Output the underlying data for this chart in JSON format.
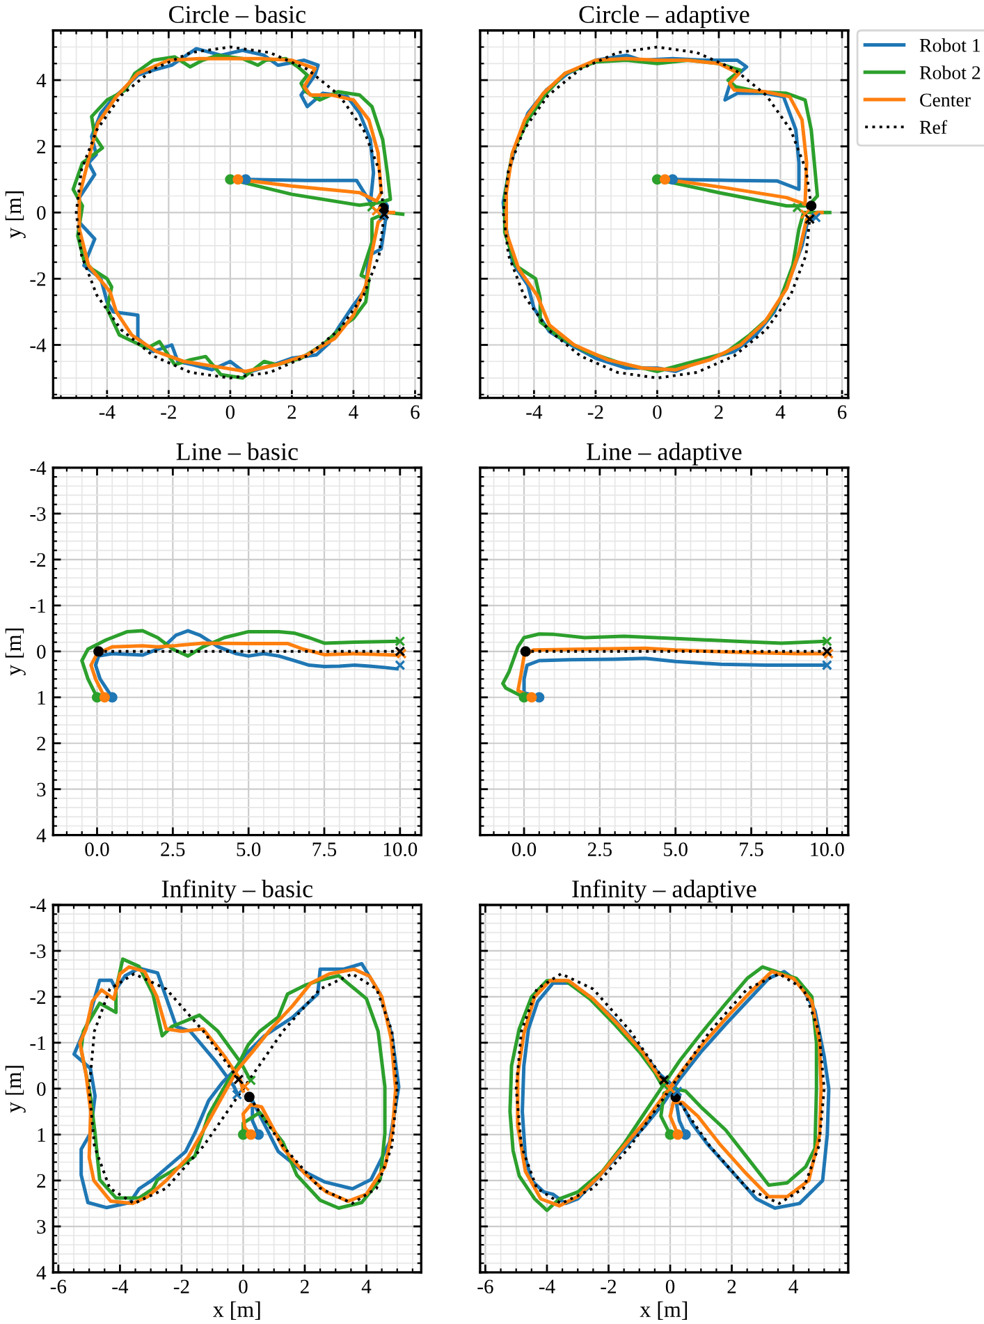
{
  "chart_data": [
    {
      "type": "line",
      "title": "Circle – basic",
      "ylabel": "y [m]",
      "xlim": [
        -5.75,
        6.2
      ],
      "ylim": [
        -5.6,
        5.5
      ],
      "xticks": [
        -4,
        -2,
        0,
        2,
        4,
        6
      ],
      "yticks": [
        -4,
        -2,
        0,
        2,
        4
      ],
      "grid": true,
      "legend": false,
      "series": [
        {
          "type": "line",
          "color": "#1f77b4",
          "x": [
            0.5,
            2.5,
            4.1,
            4.55,
            4.65,
            4.55,
            4.2,
            3.8,
            3.0,
            2.5,
            2.3,
            2.75,
            2.85,
            2.4,
            1.55,
            1.1,
            0.4,
            -0.3,
            -1.1,
            -1.9,
            -2.5,
            -3.0,
            -3.5,
            -3.8,
            -4.2,
            -4.5,
            -4.35,
            -4.6,
            -4.4,
            -4.9,
            -4.9,
            -4.4,
            -4.75,
            -4.2,
            -4.0,
            -3.8,
            -3.0,
            -3.0,
            -2.5,
            -1.9,
            -1.7,
            -1.2,
            -0.6,
            0.0,
            0.5,
            1.4,
            2.0,
            2.8,
            3.2,
            3.5,
            4.0,
            4.4,
            4.5,
            4.9,
            5.0,
            5.1,
            5.0,
            5.05
          ],
          "values": [
            1.0,
            0.97,
            0.97,
            0.3,
            1.2,
            2.2,
            3.0,
            3.5,
            3.6,
            3.2,
            3.55,
            4.15,
            4.45,
            4.6,
            4.45,
            4.75,
            4.9,
            4.75,
            4.95,
            4.45,
            4.3,
            4.15,
            3.7,
            3.45,
            3.0,
            2.3,
            1.75,
            1.5,
            1.15,
            0.45,
            -0.3,
            -0.8,
            -1.6,
            -2.0,
            -2.7,
            -3.0,
            -3.1,
            -3.8,
            -4.2,
            -4.0,
            -4.5,
            -4.6,
            -4.75,
            -4.5,
            -4.85,
            -4.6,
            -4.4,
            -4.3,
            -3.95,
            -3.5,
            -2.8,
            -2.3,
            -1.3,
            -1.1,
            -0.5,
            0.2,
            0.35,
            -0.1
          ]
        },
        {
          "type": "line",
          "color": "#2ca02c",
          "x": [
            0.0,
            2.0,
            4.2,
            4.85,
            5.2,
            5.1,
            4.95,
            4.6,
            4.2,
            3.5,
            2.9,
            2.45,
            2.3,
            2.5,
            2.2,
            1.8,
            1.15,
            0.9,
            0.4,
            -0.4,
            -0.9,
            -1.3,
            -1.8,
            -2.5,
            -3.1,
            -3.4,
            -4.0,
            -4.5,
            -4.4,
            -4.15,
            -4.8,
            -5.1,
            -4.8,
            -4.95,
            -4.75,
            -4.5,
            -4.0,
            -3.85,
            -4.0,
            -3.6,
            -2.7,
            -2.3,
            -1.8,
            -1.3,
            -0.8,
            -0.3,
            0.4,
            1.1,
            1.5,
            2.3,
            3.0,
            3.7,
            4.0,
            4.4,
            4.5,
            4.25,
            4.6,
            4.6,
            5.1,
            5.6
          ],
          "values": [
            1.0,
            0.55,
            0.22,
            0.3,
            0.4,
            1.2,
            2.2,
            3.2,
            3.55,
            3.65,
            3.4,
            3.65,
            3.9,
            4.15,
            4.4,
            4.65,
            4.6,
            4.45,
            4.65,
            4.75,
            4.6,
            4.4,
            4.7,
            4.6,
            4.2,
            3.7,
            3.4,
            2.9,
            2.3,
            1.95,
            1.5,
            0.7,
            0.2,
            -0.7,
            -1.45,
            -1.7,
            -2.0,
            -2.25,
            -2.9,
            -3.7,
            -4.1,
            -3.9,
            -4.6,
            -4.45,
            -4.35,
            -4.9,
            -5.0,
            -4.5,
            -4.6,
            -4.4,
            -4.0,
            -3.4,
            -3.2,
            -2.7,
            -2.0,
            -1.9,
            -0.9,
            -0.2,
            0.0,
            -0.05
          ]
        },
        {
          "type": "line",
          "color": "#ff7f0e",
          "x": [
            0.25,
            2.0,
            4.2,
            4.75,
            4.9,
            4.8,
            4.5,
            4.0,
            3.3,
            2.6,
            2.4,
            2.75,
            2.0,
            1.0,
            0.0,
            -1.0,
            -2.0,
            -3.0,
            -3.7,
            -4.3,
            -4.6,
            -4.9,
            -4.9,
            -4.6,
            -3.9,
            -3.7,
            -3.2,
            -2.4,
            -1.5,
            -0.5,
            0.5,
            1.5,
            2.5,
            3.4,
            4.0,
            4.4,
            4.6,
            4.8,
            5.1,
            5.3
          ],
          "values": [
            1.0,
            0.8,
            0.6,
            0.35,
            0.6,
            1.8,
            2.8,
            3.4,
            3.55,
            3.55,
            3.8,
            4.35,
            4.6,
            4.65,
            4.65,
            4.65,
            4.6,
            4.2,
            3.5,
            2.7,
            1.6,
            0.5,
            -0.5,
            -1.6,
            -2.4,
            -3.0,
            -3.7,
            -4.2,
            -4.5,
            -4.65,
            -4.8,
            -4.6,
            -4.3,
            -3.8,
            -3.1,
            -2.2,
            -1.2,
            -0.3,
            0.0,
            0.0
          ]
        },
        {
          "type": "line",
          "color": "#000000",
          "line_style": "dotted",
          "x": [
            4.97,
            4.83,
            4.33,
            3.54,
            2.5,
            1.29,
            0,
            -1.29,
            -2.5,
            -3.54,
            -4.33,
            -4.83,
            -5,
            -4.83,
            -4.33,
            -3.54,
            -2.5,
            -1.29,
            0,
            1.29,
            2.5,
            3.54,
            4.33,
            4.83,
            5.0
          ],
          "values": [
            0.13,
            1.29,
            2.5,
            3.54,
            4.33,
            4.83,
            5,
            4.83,
            4.33,
            3.54,
            2.5,
            1.29,
            0,
            -1.29,
            -2.5,
            -3.54,
            -4.33,
            -4.83,
            -5,
            -4.83,
            -4.33,
            -3.54,
            -2.5,
            -1.29,
            -0.05
          ]
        },
        {
          "type": "scatter",
          "marker": "circle",
          "x": [
            0.5,
            0.0,
            0.25,
            4.97
          ],
          "values": [
            1.0,
            1.0,
            1.0,
            0.13
          ],
          "colors": [
            "#1f77b4",
            "#2ca02c",
            "#ff7f0e",
            "#000000"
          ]
        },
        {
          "type": "scatter",
          "marker": "cross",
          "x": [
            4.97,
            4.6,
            4.75,
            5.0
          ],
          "values": [
            -0.11,
            0.17,
            0.05,
            -0.05
          ],
          "colors": [
            "#1f77b4",
            "#2ca02c",
            "#ff7f0e",
            "#000000"
          ]
        }
      ]
    },
    {
      "type": "line",
      "title": "Circle – adaptive",
      "tick_labels": "x",
      "xlim": [
        -5.75,
        6.2
      ],
      "ylim": [
        -5.6,
        5.5
      ],
      "xticks": [
        -4,
        -2,
        0,
        2,
        4,
        6
      ],
      "yticks": [
        -4,
        -2,
        0,
        2,
        4
      ],
      "grid": true,
      "legend": "right",
      "series": [
        {
          "type": "line",
          "name": "Robot 1",
          "color": "#1f77b4",
          "x": [
            0.5,
            2.5,
            3.9,
            4.6,
            4.6,
            4.5,
            4.1,
            3.5,
            2.6,
            2.2,
            2.4,
            2.9,
            2.6,
            1.5,
            0.5,
            -0.5,
            -1.0,
            -2.0,
            -2.9,
            -3.6,
            -4.2,
            -4.6,
            -4.8,
            -5.0,
            -4.9,
            -4.7,
            -4.2,
            -4.0,
            -3.5,
            -2.8,
            -2.0,
            -1.0,
            0.0,
            0.6,
            1.5,
            2.5,
            3.2,
            3.8,
            4.3,
            4.7,
            4.9,
            5.05
          ],
          "values": [
            1.0,
            0.97,
            0.95,
            0.7,
            1.5,
            2.5,
            3.5,
            3.6,
            3.6,
            3.4,
            4.0,
            4.4,
            4.6,
            4.6,
            4.65,
            4.6,
            4.75,
            4.6,
            4.2,
            3.7,
            3.0,
            2.0,
            1.3,
            0.3,
            -0.5,
            -1.5,
            -2.2,
            -2.9,
            -3.6,
            -4.0,
            -4.4,
            -4.7,
            -4.7,
            -4.8,
            -4.45,
            -4.2,
            -3.7,
            -3.0,
            -2.0,
            -1.0,
            -0.2,
            -0.15
          ]
        },
        {
          "type": "line",
          "name": "Robot 2",
          "color": "#2ca02c",
          "x": [
            0.0,
            2.0,
            4.2,
            4.9,
            5.2,
            5.1,
            5.0,
            4.8,
            4.2,
            3.3,
            2.55,
            2.3,
            2.7,
            2.0,
            1.0,
            0.0,
            -1.0,
            -2.0,
            -3.0,
            -3.6,
            -4.2,
            -4.7,
            -4.95,
            -4.95,
            -4.6,
            -3.95,
            -3.8,
            -3.8,
            -3.2,
            -2.3,
            -1.2,
            0.0,
            1.2,
            2.2,
            3.0,
            3.6,
            4.0,
            4.4,
            4.6,
            4.75,
            5.2,
            5.6
          ],
          "values": [
            1.0,
            0.6,
            0.2,
            0.2,
            0.5,
            1.5,
            2.5,
            3.4,
            3.6,
            3.65,
            3.8,
            4.0,
            4.3,
            4.5,
            4.6,
            4.5,
            4.6,
            4.55,
            4.2,
            3.6,
            2.8,
            1.8,
            0.5,
            -0.6,
            -1.6,
            -2.0,
            -2.6,
            -3.3,
            -3.75,
            -4.2,
            -4.55,
            -4.8,
            -4.5,
            -4.25,
            -3.7,
            -3.2,
            -2.6,
            -1.6,
            -0.5,
            0.0,
            0.0,
            0.0
          ]
        },
        {
          "type": "line",
          "name": "Center",
          "color": "#ff7f0e",
          "x": [
            0.25,
            2.2,
            4.2,
            4.8,
            4.85,
            4.7,
            4.3,
            3.5,
            2.5,
            2.35,
            2.65,
            2.0,
            1.0,
            0.0,
            -1.0,
            -2.0,
            -3.0,
            -3.7,
            -4.3,
            -4.7,
            -4.9,
            -4.9,
            -4.5,
            -3.9,
            -3.5,
            -2.7,
            -1.6,
            -0.5,
            0.6,
            1.7,
            2.7,
            3.5,
            4.2,
            4.6,
            4.85,
            5.2,
            5.35
          ],
          "values": [
            1.0,
            0.75,
            0.45,
            0.25,
            1.5,
            2.8,
            3.5,
            3.65,
            3.7,
            3.9,
            4.2,
            4.5,
            4.6,
            4.6,
            4.65,
            4.6,
            4.2,
            3.6,
            2.8,
            1.8,
            0.6,
            -0.6,
            -1.7,
            -2.5,
            -3.4,
            -4.0,
            -4.45,
            -4.7,
            -4.75,
            -4.45,
            -4.0,
            -3.3,
            -2.3,
            -1.2,
            -0.2,
            0.0,
            0.0
          ]
        },
        {
          "type": "line",
          "name": "Ref",
          "color": "#000000",
          "line_style": "dotted",
          "x": [
            5.0,
            4.83,
            4.33,
            3.54,
            2.5,
            1.29,
            0,
            -1.29,
            -2.5,
            -3.54,
            -4.33,
            -4.83,
            -5,
            -4.83,
            -4.33,
            -3.54,
            -2.5,
            -1.29,
            0,
            1.29,
            2.5,
            3.54,
            4.33,
            4.83,
            4.95
          ],
          "values": [
            0.2,
            1.29,
            2.5,
            3.54,
            4.33,
            4.83,
            5,
            4.83,
            4.33,
            3.54,
            2.5,
            1.29,
            0,
            -1.29,
            -2.5,
            -3.54,
            -4.33,
            -4.83,
            -5,
            -4.83,
            -4.33,
            -3.54,
            -2.5,
            -1.29,
            -0.2
          ]
        },
        {
          "type": "scatter",
          "marker": "circle",
          "x": [
            0.5,
            0.0,
            0.25,
            5.0
          ],
          "values": [
            1.0,
            1.0,
            1.0,
            0.2
          ],
          "colors": [
            "#1f77b4",
            "#2ca02c",
            "#ff7f0e",
            "#000000"
          ]
        },
        {
          "type": "scatter",
          "marker": "cross",
          "x": [
            5.15,
            4.55,
            4.8,
            4.95
          ],
          "values": [
            -0.15,
            0.15,
            -0.05,
            -0.2
          ],
          "colors": [
            "#1f77b4",
            "#2ca02c",
            "#ff7f0e",
            "#000000"
          ]
        }
      ]
    },
    {
      "type": "line",
      "title": "Line – basic",
      "ylabel": "y [m]",
      "xlim": [
        -1.45,
        10.7
      ],
      "ylim": [
        4,
        -4
      ],
      "xticks": [
        {
          "value": 0,
          "label": "0.0"
        },
        {
          "value": 2.5,
          "label": "2.5"
        },
        {
          "value": 5,
          "label": "5.0"
        },
        {
          "value": 7.5,
          "label": "7.5"
        },
        {
          "value": 10,
          "label": "10.0"
        }
      ],
      "yticks": [
        -4,
        -3,
        -2,
        -1,
        0,
        1,
        2,
        3,
        4
      ],
      "grid": true,
      "legend": false,
      "series": [
        {
          "type": "line",
          "color": "#1f77b4",
          "x": [
            0.5,
            0.1,
            -0.05,
            0.05,
            0.5,
            1.5,
            2.2,
            2.6,
            3.0,
            3.4,
            4.0,
            4.6,
            5.0,
            5.5,
            6.0,
            6.5,
            7.0,
            7.5,
            8.0,
            8.5,
            9.0,
            9.5,
            9.9
          ],
          "values": [
            1.0,
            0.6,
            0.3,
            0.1,
            0.05,
            0.08,
            -0.1,
            -0.35,
            -0.45,
            -0.35,
            -0.1,
            0.05,
            0.1,
            0.05,
            0.1,
            0.2,
            0.3,
            0.33,
            0.32,
            0.3,
            0.32,
            0.35,
            0.38
          ]
        },
        {
          "type": "line",
          "color": "#2ca02c",
          "x": [
            0.0,
            -0.3,
            -0.5,
            -0.3,
            0.3,
            1.0,
            1.5,
            2.0,
            2.5,
            3.0,
            3.5,
            4.2,
            5.0,
            6.0,
            6.5,
            7.0,
            7.5,
            8.5,
            9.9
          ],
          "values": [
            1.0,
            0.6,
            0.2,
            -0.05,
            -0.25,
            -0.43,
            -0.45,
            -0.3,
            -0.05,
            0.1,
            -0.1,
            -0.3,
            -0.43,
            -0.43,
            -0.4,
            -0.3,
            -0.18,
            -0.2,
            -0.22
          ]
        },
        {
          "type": "line",
          "color": "#ff7f0e",
          "x": [
            0.25,
            -0.05,
            -0.2,
            0.0,
            0.5,
            1.5,
            2.0,
            2.5,
            3.5,
            5.0,
            6.3,
            6.8,
            7.5,
            8.5,
            9.5,
            9.9
          ],
          "values": [
            1.0,
            0.6,
            0.3,
            0.05,
            -0.1,
            -0.12,
            -0.1,
            -0.12,
            -0.18,
            -0.17,
            -0.17,
            -0.05,
            0.07,
            0.05,
            0.07,
            0.08
          ]
        },
        {
          "type": "line",
          "color": "#000000",
          "line_style": "dotted",
          "x": [
            0,
            10
          ],
          "values": [
            0,
            0
          ]
        },
        {
          "type": "scatter",
          "marker": "circle",
          "x": [
            0.5,
            0.0,
            0.25,
            0.05
          ],
          "values": [
            1.0,
            1.0,
            1.0,
            0.0
          ],
          "colors": [
            "#1f77b4",
            "#2ca02c",
            "#ff7f0e",
            "#000000"
          ]
        },
        {
          "type": "scatter",
          "marker": "cross",
          "x": [
            10,
            10,
            10.05,
            10
          ],
          "values": [
            0.3,
            -0.22,
            0.05,
            0.0
          ],
          "colors": [
            "#1f77b4",
            "#2ca02c",
            "#ff7f0e",
            "#000000"
          ]
        }
      ]
    },
    {
      "type": "line",
      "title": "Line – adaptive",
      "tick_labels": "x",
      "xlim": [
        -1.45,
        10.7
      ],
      "ylim": [
        4,
        -4
      ],
      "xticks": [
        {
          "value": 0,
          "label": "0.0"
        },
        {
          "value": 2.5,
          "label": "2.5"
        },
        {
          "value": 5,
          "label": "5.0"
        },
        {
          "value": 7.5,
          "label": "7.5"
        },
        {
          "value": 10,
          "label": "10.0"
        }
      ],
      "yticks": [
        -4,
        -3,
        -2,
        -1,
        0,
        1,
        2,
        3,
        4
      ],
      "grid": true,
      "legend": false,
      "series": [
        {
          "type": "line",
          "color": "#1f77b4",
          "x": [
            0.5,
            0.0,
            0.0,
            0.1,
            0.5,
            1.5,
            3.0,
            4.0,
            5.0,
            6.5,
            8.0,
            9.5,
            9.9
          ],
          "values": [
            1.0,
            0.9,
            0.6,
            0.3,
            0.2,
            0.18,
            0.17,
            0.15,
            0.22,
            0.28,
            0.3,
            0.3,
            0.3
          ]
        },
        {
          "type": "line",
          "color": "#2ca02c",
          "x": [
            0.0,
            -0.6,
            -0.7,
            -0.5,
            -0.2,
            0.0,
            0.5,
            1.0,
            2.0,
            3.3,
            5.0,
            7.0,
            8.5,
            9.9
          ],
          "values": [
            1.0,
            0.8,
            0.7,
            0.45,
            -0.1,
            -0.3,
            -0.38,
            -0.37,
            -0.3,
            -0.33,
            -0.28,
            -0.22,
            -0.18,
            -0.22
          ]
        },
        {
          "type": "line",
          "color": "#ff7f0e",
          "x": [
            0.25,
            -0.2,
            -0.1,
            0.0,
            0.3,
            2.0,
            4.0,
            5.0,
            7.0,
            9.0,
            9.9
          ],
          "values": [
            1.0,
            0.85,
            0.5,
            0.1,
            -0.03,
            -0.05,
            -0.07,
            -0.03,
            0.02,
            0.05,
            0.05
          ]
        },
        {
          "type": "line",
          "color": "#000000",
          "line_style": "dotted",
          "x": [
            0,
            10
          ],
          "values": [
            0,
            0
          ]
        },
        {
          "type": "scatter",
          "marker": "circle",
          "x": [
            0.5,
            0.0,
            0.25,
            0.05
          ],
          "values": [
            1.0,
            1.0,
            1.0,
            0.0
          ],
          "colors": [
            "#1f77b4",
            "#2ca02c",
            "#ff7f0e",
            "#000000"
          ]
        },
        {
          "type": "scatter",
          "marker": "cross",
          "x": [
            10,
            10,
            10.05,
            10
          ],
          "values": [
            0.3,
            -0.22,
            0.05,
            0.0
          ],
          "colors": [
            "#1f77b4",
            "#2ca02c",
            "#ff7f0e",
            "#000000"
          ]
        }
      ]
    },
    {
      "type": "line",
      "title": "Infinity – basic",
      "xlabel": "x [m]",
      "ylabel": "y [m]",
      "xlim": [
        -6.17,
        5.78
      ],
      "ylim": [
        4,
        -4
      ],
      "xticks": [
        -6,
        -4,
        -2,
        0,
        2,
        4
      ],
      "yticks": [
        -4,
        -3,
        -2,
        -1,
        0,
        1,
        2,
        3,
        4
      ],
      "grid": true,
      "legend": false,
      "series": [
        {
          "type": "line",
          "color": "#1f77b4",
          "x": [
            0.5,
            0.3,
            0.3,
            1.14,
            1.9,
            2.64,
            3.55,
            4.15,
            4.75,
            5.05,
            4.83,
            4.45,
            3.85,
            3.25,
            2.5,
            2.42,
            1.6,
            0.69,
            0.08,
            -0.37,
            -0.67,
            -1.12,
            -1.57,
            -1.87,
            -2.93,
            -3.38,
            -3.68,
            -4.43,
            -5.04,
            -5.26,
            -5.26,
            -4.96,
            -4.81,
            -4.96,
            -5.49,
            -5.04,
            -4.66,
            -4.28,
            -4.13,
            -3.83,
            -3.38,
            -2.78,
            -2.17,
            -1.72,
            -0.9,
            -0.3,
            -0.19
          ],
          "values": [
            1.0,
            0.7,
            0.26,
            1.37,
            1.78,
            2.03,
            2.18,
            1.98,
            1.17,
            -0.04,
            -1.15,
            -2.06,
            -2.72,
            -2.6,
            -2.6,
            -2.06,
            -1.55,
            -1.15,
            -0.75,
            -0.34,
            -0.14,
            0.26,
            0.97,
            1.37,
            1.98,
            2.18,
            2.48,
            2.59,
            2.48,
            1.88,
            1.32,
            0.97,
            0.16,
            -0.44,
            -0.75,
            -1.45,
            -2.36,
            -2.36,
            -2.16,
            -2.46,
            -2.62,
            -2.52,
            -1.35,
            -1.25,
            -0.6,
            -0.05,
            0.11
          ]
        },
        {
          "type": "line",
          "color": "#2ca02c",
          "x": [
            0.0,
            0.0,
            0.54,
            1.29,
            1.74,
            2.5,
            3.1,
            3.85,
            4.45,
            4.6,
            4.6,
            4.38,
            4.0,
            3.1,
            2.5,
            2.04,
            1.44,
            1.14,
            0.54,
            0.16,
            -0.14,
            -0.52,
            -1.12,
            -1.57,
            -2.02,
            -2.78,
            -2.93,
            -3.38,
            -4.13,
            -4.66,
            -4.81,
            -4.96,
            -5.26,
            -5.19,
            -4.66,
            -4.13,
            -4.13,
            -3.91,
            -3.38,
            -2.93,
            -2.63,
            -2.32,
            -1.42,
            -0.82,
            -0.06,
            0.23
          ],
          "values": [
            1.0,
            0.75,
            0.52,
            1.17,
            1.88,
            2.43,
            2.6,
            2.48,
            1.98,
            0.97,
            -0.04,
            -1.25,
            -1.96,
            -2.46,
            -2.36,
            -2.26,
            -2.06,
            -1.56,
            -1.25,
            -0.95,
            -0.55,
            -0.14,
            0.57,
            1.47,
            1.68,
            1.98,
            2.18,
            2.38,
            2.38,
            1.98,
            0.97,
            0.16,
            -0.85,
            -1.25,
            -1.86,
            -1.66,
            -2.16,
            -2.82,
            -2.66,
            -2.06,
            -1.15,
            -1.35,
            -1.6,
            -1.25,
            -0.55,
            -0.19
          ]
        },
        {
          "type": "line",
          "color": "#ff7f0e",
          "x": [
            0.25,
            0.05,
            0.0,
            0.25,
            0.6,
            1.0,
            1.3,
            2.0,
            2.7,
            3.4,
            4.0,
            4.6,
            4.85,
            4.95,
            4.8,
            4.5,
            4.1,
            3.6,
            2.8,
            2.2,
            1.6,
            0.9,
            0.3,
            -0.2,
            -0.7,
            -1.2,
            -1.8,
            -2.5,
            -3.1,
            -3.6,
            -4.3,
            -4.85,
            -5.0,
            -4.95,
            -5.1,
            -5.3,
            -5.1,
            -4.9,
            -4.6,
            -4.2,
            -4.0,
            -3.7,
            -3.2,
            -2.8,
            -2.5,
            -2.0,
            -1.3,
            -0.6,
            -0.1,
            0.0
          ],
          "values": [
            1.0,
            0.85,
            0.55,
            0.35,
            0.4,
            0.9,
            1.3,
            1.85,
            2.25,
            2.45,
            2.3,
            1.7,
            0.9,
            0.0,
            -1.1,
            -2.0,
            -2.45,
            -2.6,
            -2.5,
            -2.3,
            -1.8,
            -1.3,
            -0.8,
            -0.4,
            0.2,
            0.8,
            1.5,
            2.0,
            2.35,
            2.5,
            2.45,
            2.0,
            1.5,
            0.5,
            -0.3,
            -1.0,
            -1.3,
            -1.9,
            -2.15,
            -1.95,
            -2.5,
            -2.65,
            -2.55,
            -2.0,
            -1.3,
            -1.25,
            -1.3,
            -0.7,
            -0.2,
            0.05
          ]
        },
        {
          "type": "line",
          "color": "#000000",
          "line_style": "dotted",
          "x": [
            0.2,
            1.29,
            2.5,
            3.54,
            4.33,
            4.83,
            5,
            4.83,
            4.33,
            3.54,
            2.5,
            1.29,
            0,
            -1.29,
            -2.5,
            -3.54,
            -4.33,
            -4.83,
            -5,
            -4.83,
            -4.33,
            -3.54,
            -2.5,
            -1.29,
            -0.15
          ],
          "values": [
            0.18,
            1.25,
            2.17,
            2.5,
            2.17,
            1.25,
            0,
            -1.25,
            -2.17,
            -2.5,
            -2.17,
            -1.25,
            0,
            1.25,
            2.17,
            2.5,
            2.17,
            1.25,
            0,
            -1.25,
            -2.17,
            -2.5,
            -2.17,
            -1.25,
            -0.2
          ]
        },
        {
          "type": "scatter",
          "marker": "circle",
          "x": [
            0.5,
            0.0,
            0.25,
            0.2
          ],
          "values": [
            1.0,
            1.0,
            1.0,
            0.18
          ],
          "colors": [
            "#1f77b4",
            "#2ca02c",
            "#ff7f0e",
            "#000000"
          ]
        },
        {
          "type": "scatter",
          "marker": "cross",
          "x": [
            -0.2,
            0.25,
            0.05,
            -0.15
          ],
          "values": [
            0.13,
            -0.18,
            -0.05,
            -0.2
          ],
          "colors": [
            "#1f77b4",
            "#2ca02c",
            "#ff7f0e",
            "#000000"
          ]
        }
      ]
    },
    {
      "type": "line",
      "title": "Infinity – adaptive",
      "xlabel": "x [m]",
      "tick_labels": "x",
      "xlim": [
        -6.17,
        5.78
      ],
      "ylim": [
        4,
        -4
      ],
      "xticks": [
        -6,
        -4,
        -2,
        0,
        2,
        4
      ],
      "yticks": [
        -4,
        -3,
        -2,
        -1,
        0,
        1,
        2,
        3,
        4
      ],
      "grid": true,
      "legend": false,
      "series": [
        {
          "type": "line",
          "color": "#1f77b4",
          "x": [
            0.5,
            0.3,
            0.2,
            0.4,
            0.7,
            1.2,
            2.0,
            2.8,
            3.4,
            4.2,
            4.95,
            5.1,
            5.15,
            5.0,
            4.7,
            4.2,
            3.7,
            3.2,
            2.5,
            1.8,
            1.0,
            0.3,
            -0.2,
            -0.8,
            -1.5,
            -2.3,
            -3.0,
            -3.4,
            -3.8,
            -4.1,
            -4.5,
            -4.7,
            -4.8,
            -4.75,
            -4.6,
            -4.3,
            -3.8,
            -3.3,
            -2.6,
            -1.8,
            -1.0,
            -0.4,
            0.2,
            0.25
          ],
          "values": [
            1.0,
            0.7,
            0.3,
            0.35,
            0.75,
            1.2,
            1.8,
            2.4,
            2.6,
            2.5,
            2.0,
            1.0,
            0.0,
            -0.7,
            -1.7,
            -2.3,
            -2.55,
            -2.4,
            -1.9,
            -1.4,
            -0.8,
            -0.2,
            0.3,
            0.8,
            1.3,
            1.9,
            2.4,
            2.5,
            2.3,
            2.25,
            2.0,
            1.5,
            0.5,
            -0.5,
            -1.3,
            -1.9,
            -2.3,
            -2.3,
            -2.0,
            -1.5,
            -0.9,
            -0.35,
            0.0,
            0.05
          ]
        },
        {
          "type": "line",
          "color": "#2ca02c",
          "x": [
            0.0,
            -0.3,
            -0.2,
            0.1,
            0.5,
            1.0,
            1.8,
            2.5,
            3.2,
            3.8,
            4.4,
            4.7,
            4.75,
            4.75,
            4.6,
            4.1,
            3.0,
            2.5,
            1.8,
            1.0,
            0.3,
            -0.3,
            -0.9,
            -1.5,
            -2.2,
            -3.0,
            -3.6,
            -4.0,
            -4.4,
            -4.9,
            -5.1,
            -5.2,
            -5.15,
            -4.9,
            -4.5,
            -4.0,
            -3.4,
            -2.6,
            -1.8,
            -1.0,
            -0.5,
            -0.25
          ],
          "values": [
            1.0,
            0.6,
            0.1,
            0.0,
            0.05,
            0.4,
            0.9,
            1.5,
            2.1,
            2.05,
            1.7,
            1.3,
            0.0,
            -1.0,
            -2.0,
            -2.4,
            -2.65,
            -2.4,
            -1.85,
            -1.2,
            -0.6,
            0.0,
            0.6,
            1.2,
            1.8,
            2.25,
            2.4,
            2.65,
            2.4,
            1.9,
            1.35,
            0.5,
            -0.5,
            -1.3,
            -2.0,
            -2.35,
            -2.35,
            -1.95,
            -1.4,
            -0.8,
            -0.35,
            -0.05
          ]
        },
        {
          "type": "line",
          "color": "#ff7f0e",
          "x": [
            0.25,
            0.0,
            0.1,
            0.4,
            0.9,
            1.6,
            2.4,
            3.2,
            3.8,
            4.5,
            4.85,
            4.9,
            4.85,
            4.6,
            4.0,
            3.3,
            2.6,
            1.9,
            1.1,
            0.4,
            -0.2,
            -0.8,
            -1.5,
            -2.3,
            -3.0,
            -3.6,
            -4.2,
            -4.7,
            -4.95,
            -4.95,
            -4.75,
            -4.4,
            -3.9,
            -3.3,
            -2.5,
            -1.7,
            -0.9,
            -0.3,
            0.0
          ],
          "values": [
            1.0,
            0.6,
            0.3,
            0.3,
            0.6,
            1.2,
            1.8,
            2.35,
            2.35,
            2.0,
            1.0,
            0.0,
            -1.0,
            -1.9,
            -2.4,
            -2.55,
            -2.1,
            -1.6,
            -1.0,
            -0.4,
            0.15,
            0.7,
            1.25,
            1.9,
            2.35,
            2.55,
            2.4,
            1.8,
            0.8,
            -0.3,
            -1.2,
            -2.0,
            -2.35,
            -2.35,
            -1.95,
            -1.4,
            -0.8,
            -0.2,
            0.0
          ]
        },
        {
          "type": "line",
          "color": "#000000",
          "line_style": "dotted",
          "x": [
            0.18,
            1.29,
            2.5,
            3.54,
            4.33,
            4.83,
            5,
            4.83,
            4.33,
            3.54,
            2.5,
            1.29,
            0,
            -1.29,
            -2.5,
            -3.54,
            -4.33,
            -4.83,
            -5,
            -4.83,
            -4.33,
            -3.54,
            -2.5,
            -1.29,
            -0.2
          ],
          "values": [
            0.18,
            1.25,
            2.17,
            2.5,
            2.17,
            1.25,
            0,
            -1.25,
            -2.17,
            -2.5,
            -2.17,
            -1.25,
            0,
            1.25,
            2.17,
            2.5,
            2.17,
            1.25,
            0,
            -1.25,
            -2.17,
            -2.5,
            -2.17,
            -1.25,
            -0.19
          ]
        },
        {
          "type": "scatter",
          "marker": "circle",
          "x": [
            0.5,
            0.0,
            0.25,
            0.18
          ],
          "values": [
            1.0,
            1.0,
            1.0,
            0.18
          ],
          "colors": [
            "#1f77b4",
            "#2ca02c",
            "#ff7f0e",
            "#000000"
          ]
        },
        {
          "type": "scatter",
          "marker": "cross",
          "x": [
            0.23,
            -0.2,
            0.0,
            -0.2
          ],
          "values": [
            0.06,
            -0.07,
            0.0,
            -0.19
          ],
          "colors": [
            "#1f77b4",
            "#2ca02c",
            "#ff7f0e",
            "#000000"
          ]
        }
      ]
    }
  ]
}
